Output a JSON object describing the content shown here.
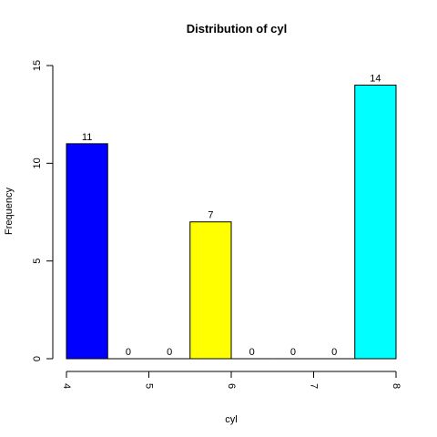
{
  "chart_data": {
    "type": "bar",
    "title": "Distribution of cyl",
    "xlabel": "cyl",
    "ylabel": "Frequency",
    "bins": [
      {
        "start": 4.0,
        "end": 4.5,
        "value": 11,
        "color": "#0000FF"
      },
      {
        "start": 4.5,
        "end": 5.0,
        "value": 0,
        "color": "#FFFFFF"
      },
      {
        "start": 5.0,
        "end": 5.5,
        "value": 0,
        "color": "#FFFFFF"
      },
      {
        "start": 5.5,
        "end": 6.0,
        "value": 7,
        "color": "#FFFF00"
      },
      {
        "start": 6.0,
        "end": 6.5,
        "value": 0,
        "color": "#FFFFFF"
      },
      {
        "start": 6.5,
        "end": 7.0,
        "value": 0,
        "color": "#FFFFFF"
      },
      {
        "start": 7.0,
        "end": 7.5,
        "value": 0,
        "color": "#FFFFFF"
      },
      {
        "start": 7.5,
        "end": 8.0,
        "value": 14,
        "color": "#00FFFF"
      }
    ],
    "xlim": [
      4,
      8
    ],
    "ylim": [
      0,
      15
    ],
    "x_ticks": [
      "4",
      "5",
      "6",
      "7",
      "8"
    ],
    "y_ticks": [
      "0",
      "5",
      "10",
      "15"
    ],
    "grid": false,
    "legend": "none"
  }
}
